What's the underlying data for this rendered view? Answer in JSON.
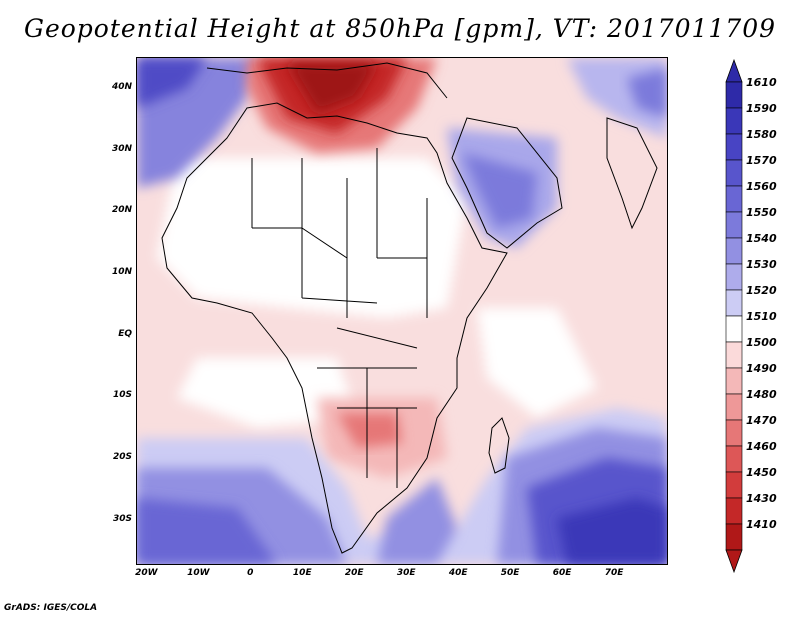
{
  "title": "Geopotential Height at 850hPa [gpm], VT: 2017011709",
  "credit": "GrADS: IGES/COLA",
  "map": {
    "region": "Africa and Middle East",
    "variable": "Geopotential Height at 850hPa",
    "units": "gpm",
    "valid_time": "2017011709",
    "lon_range": [
      -22,
      80
    ],
    "lat_range": [
      -37,
      45
    ],
    "lat_labels": [
      "40N",
      "30N",
      "20N",
      "10N",
      "EQ",
      "10S",
      "20S",
      "30S"
    ],
    "lat_values": [
      40,
      30,
      20,
      10,
      0,
      -10,
      -20,
      -30
    ],
    "lon_labels": [
      "20W",
      "10W",
      "0",
      "10E",
      "20E",
      "30E",
      "40E",
      "50E",
      "60E",
      "70E"
    ],
    "lon_values": [
      -20,
      -10,
      0,
      10,
      20,
      30,
      40,
      50,
      60,
      70
    ]
  },
  "colorbar": {
    "levels": [
      "1610",
      "1590",
      "1580",
      "1570",
      "1560",
      "1550",
      "1540",
      "1530",
      "1520",
      "1510",
      "1500",
      "1490",
      "1480",
      "1470",
      "1460",
      "1450",
      "1430",
      "1410"
    ],
    "colors": [
      "#2e2aa8",
      "#3a37b8",
      "#4844c4",
      "#5855cc",
      "#6966d4",
      "#7c7adb",
      "#9290e2",
      "#aeaceb",
      "#ccccf4",
      "#ffffff",
      "#fbdada",
      "#f4b8b8",
      "#ee9898",
      "#e67777",
      "#dd5757",
      "#d23c3c",
      "#c42828",
      "#b01818"
    ]
  }
}
